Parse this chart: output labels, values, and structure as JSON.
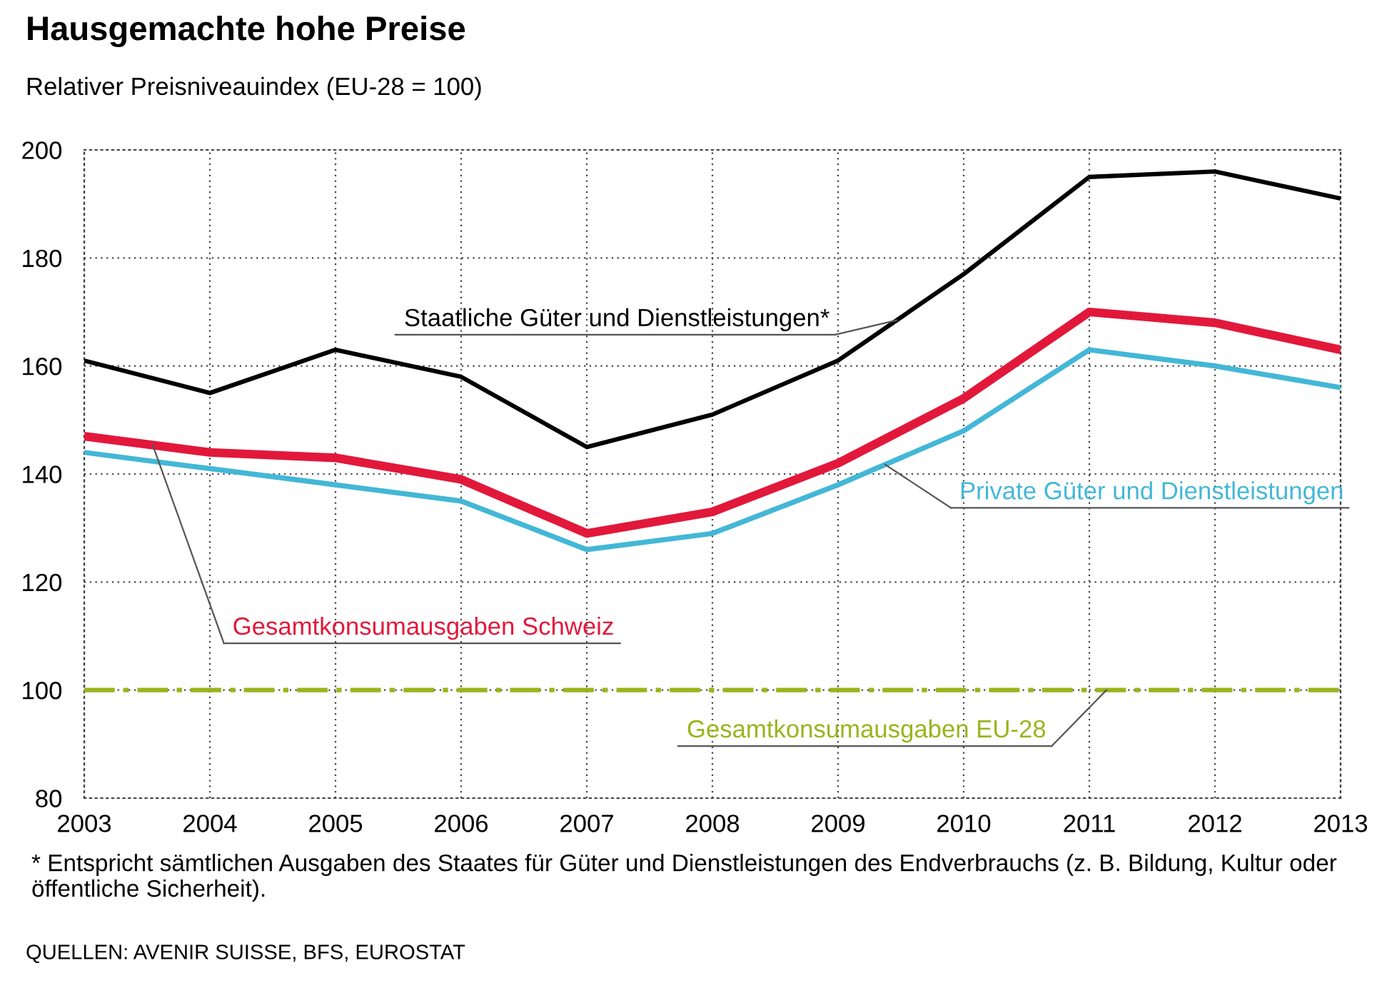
{
  "chart_data": {
    "type": "line",
    "title": "Hausgemachte hohe Preise",
    "subtitle": "Relativer Preisniveauindex (EU-28 = 100)",
    "x": [
      2003,
      2004,
      2005,
      2006,
      2007,
      2008,
      2009,
      2010,
      2011,
      2012,
      2013
    ],
    "series": [
      {
        "name": "Staatliche Güter und Dienstleistungen*",
        "color": "#000000",
        "values": [
          161,
          155,
          163,
          158,
          145,
          151,
          161,
          177,
          195,
          196,
          191
        ]
      },
      {
        "name": "Gesamtkonsumausgaben Schweiz",
        "color": "#e2183b",
        "values": [
          147,
          144,
          143,
          139,
          129,
          133,
          142,
          154,
          170,
          168,
          163
        ]
      },
      {
        "name": "Private Güter und Dienstleistungen",
        "color": "#43b7d7",
        "values": [
          144,
          141,
          138,
          135,
          126,
          129,
          138,
          148,
          163,
          160,
          156
        ]
      },
      {
        "name": "Gesamtkonsumausgaben EU-28",
        "color": "#99b41c",
        "line_style": "dashed",
        "values": [
          100,
          100,
          100,
          100,
          100,
          100,
          100,
          100,
          100,
          100,
          100
        ]
      }
    ],
    "xlim": [
      2003,
      2013
    ],
    "xticks": [
      2003,
      2004,
      2005,
      2006,
      2007,
      2008,
      2009,
      2010,
      2011,
      2012,
      2013
    ],
    "ylim": [
      80,
      200
    ],
    "yticks": [
      80,
      100,
      120,
      140,
      160,
      180,
      200
    ],
    "grid": true,
    "annotations": [
      "* Entspricht sämtlichen Ausgaben des Staates für Güter und Dienstleistungen des Endverbrauchs (z. B. Bildung, Kultur oder öffentliche Sicherheit).",
      "QUELLEN: AVENIR SUISSE, BFS, EUROSTAT"
    ]
  }
}
